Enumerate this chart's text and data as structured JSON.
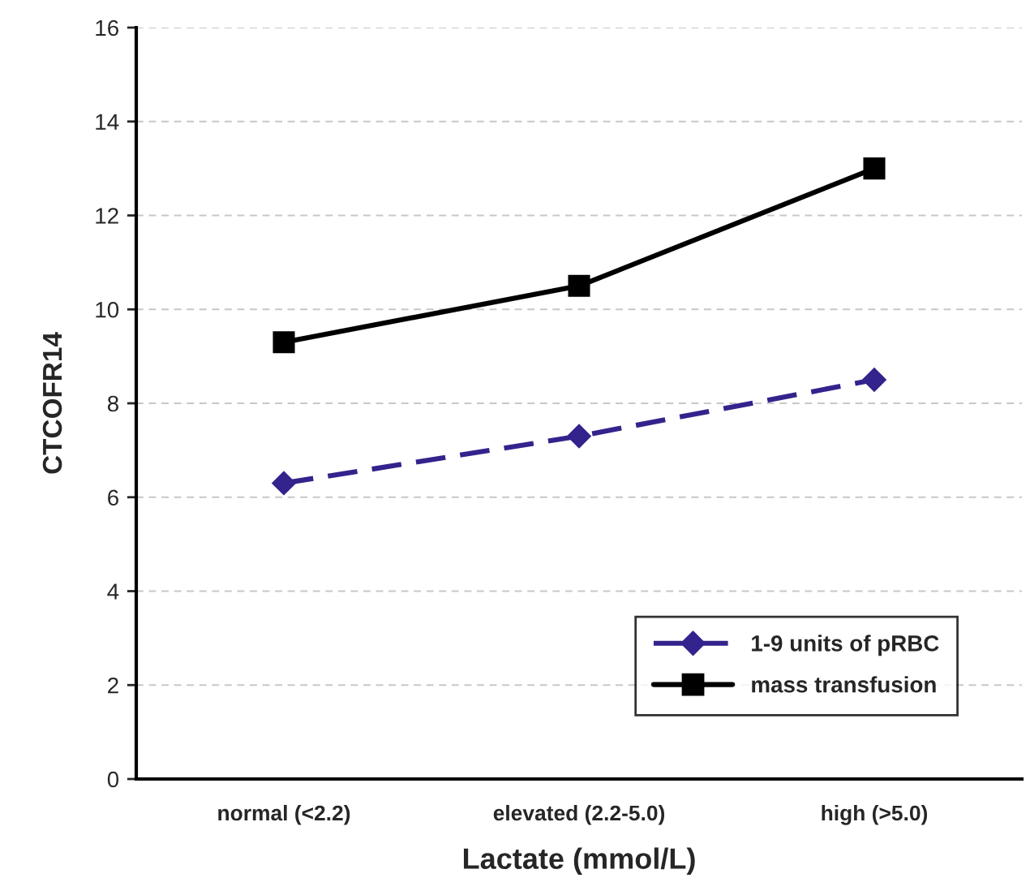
{
  "chart_data": {
    "type": "line",
    "xlabel": "Lactate (mmol/L)",
    "ylabel": "CTCOFR14",
    "categories": [
      "normal (<2.2)",
      "elevated (2.2-5.0)",
      "high (>5.0)"
    ],
    "series": [
      {
        "name": "1-9 units of pRBC",
        "color": "#33238c",
        "values": [
          6.3,
          7.3,
          8.5
        ],
        "marker": "diamond",
        "line_style": "dashed"
      },
      {
        "name": "mass transfusion",
        "color": "#000000",
        "values": [
          9.3,
          10.5,
          13.0
        ],
        "marker": "square",
        "line_style": "solid"
      }
    ],
    "ylim": [
      0,
      16
    ],
    "yticks": [
      0,
      2,
      4,
      6,
      8,
      10,
      12,
      14,
      16
    ],
    "grid": "y",
    "legend": "bottom right"
  }
}
